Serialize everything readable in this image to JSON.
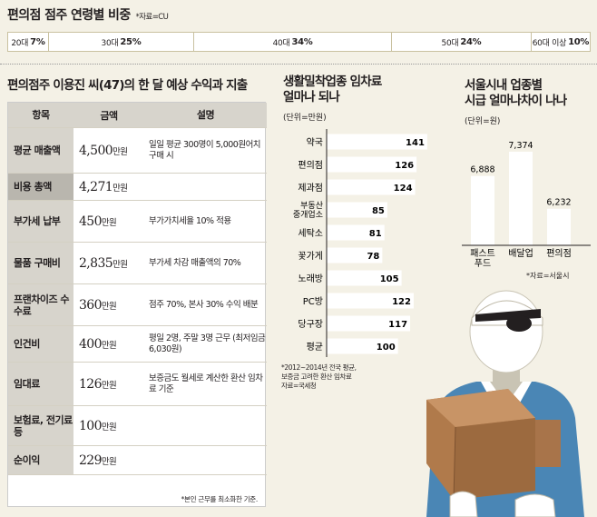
{
  "age_chart": {
    "title": "편의점 점주 연령별 비중",
    "source": "*자료=CU",
    "segments": [
      {
        "label": "20대",
        "value": 7,
        "display": "7%"
      },
      {
        "label": "30대",
        "value": 25,
        "display": "25%"
      },
      {
        "label": "40대",
        "value": 34,
        "display": "34%"
      },
      {
        "label": "50대",
        "value": 24,
        "display": "24%"
      },
      {
        "label": "60대 이상",
        "value": 10,
        "display": "10%"
      }
    ]
  },
  "table": {
    "title": "편의점주 이용진 씨(47)의 한 달 예상 수익과 지출",
    "headers": [
      "항목",
      "금액",
      "설명"
    ],
    "unit": "만원",
    "rows": [
      {
        "item": "평균 매출액",
        "amount": "4,500",
        "desc": "일일 평균 300명이 5,000원어치 구매 시"
      },
      {
        "item": "비용 총액",
        "amount": "4,271",
        "desc": ""
      },
      {
        "item": "부가세 납부",
        "amount": "450",
        "desc": "부가가치세율 10% 적용"
      },
      {
        "item": "물품 구매비",
        "amount": "2,835",
        "desc": "부가세 차감 매출액의 70%"
      },
      {
        "item": "프랜차이즈 수수료",
        "amount": "360",
        "desc": "점주 70%, 본사 30% 수익 배분"
      },
      {
        "item": "인건비",
        "amount": "400",
        "desc": "평일 2명, 주말 3명 근무 (최저임금 6,030원)"
      },
      {
        "item": "임대료",
        "amount": "126",
        "desc": "보증금도 월세로 계산한 환산 임차료 기준"
      },
      {
        "item": "보험료, 전기료 등",
        "amount": "100",
        "desc": ""
      },
      {
        "item": "순이익",
        "amount": "229",
        "desc": ""
      }
    ],
    "note": "*본인 근무를 최소화한 기준."
  },
  "chart_data": [
    {
      "type": "bar",
      "orientation": "horizontal",
      "title": "생활밀착업종 임차료 얼마나 되나",
      "unit": "(단위=만원)",
      "categories": [
        "약국",
        "편의점",
        "제과점",
        "부동산 중개업소",
        "세탁소",
        "꽃가게",
        "노래방",
        "PC방",
        "당구장",
        "평균"
      ],
      "values": [
        141,
        126,
        124,
        85,
        81,
        78,
        105,
        122,
        117,
        100
      ],
      "note": "*2012~2014년 전국 평균, 보증금 고려한 환산 임차료 자료=국세청"
    },
    {
      "type": "bar",
      "orientation": "vertical",
      "title": "서울시내 업종별 시급 얼마나차이 나나",
      "unit": "(단위=원)",
      "categories": [
        "패스트 푸드",
        "배달업",
        "편의점"
      ],
      "values": [
        6888,
        7374,
        6232
      ],
      "value_labels": [
        "6,888",
        "7,374",
        "6,232"
      ],
      "note": "*자료=서울시"
    }
  ],
  "colors": {
    "background": "#f4f1e6",
    "bar": "#ffffff",
    "header_cell": "#d7d4cc",
    "illustration_blue": "#4a86b5",
    "box": "#b07a4b"
  }
}
